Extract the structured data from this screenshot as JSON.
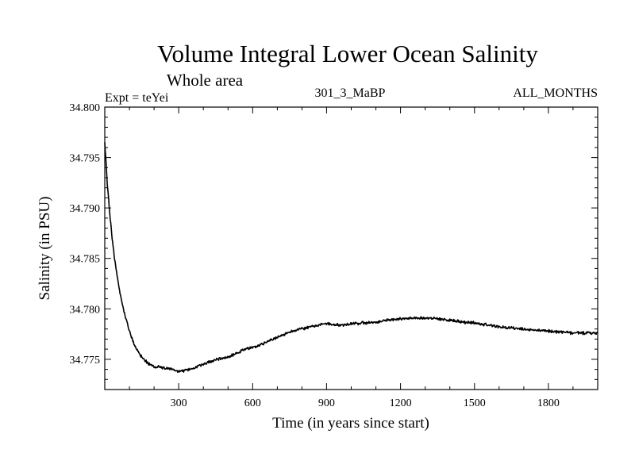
{
  "chart_data": {
    "type": "line",
    "title": "Volume Integral Lower Ocean Salinity",
    "subtitle": "Whole area",
    "experiment": "Expt = teYei",
    "run_label": "301_3_MaBP",
    "months_label": "ALL_MONTHS",
    "xlabel": "Time (in years since start)",
    "ylabel": "Salinity (in PSU)",
    "xlim": [
      0,
      2000
    ],
    "ylim": [
      34.772,
      34.8
    ],
    "xticks": [
      300,
      600,
      900,
      1200,
      1500,
      1800
    ],
    "xtick_labels": [
      "300",
      "600",
      "900",
      "1200",
      "1500",
      "1800"
    ],
    "yticks": [
      34.775,
      34.78,
      34.785,
      34.79,
      34.795,
      34.8
    ],
    "ytick_labels": [
      "34.775",
      "34.780",
      "34.785",
      "34.790",
      "34.795",
      "34.800"
    ],
    "grid": false,
    "series": [
      {
        "name": "Salinity",
        "x": [
          0,
          10,
          20,
          30,
          40,
          50,
          60,
          80,
          100,
          120,
          150,
          180,
          200,
          250,
          300,
          350,
          400,
          450,
          500,
          550,
          600,
          650,
          700,
          750,
          800,
          850,
          900,
          950,
          1000,
          1050,
          1100,
          1150,
          1200,
          1250,
          1300,
          1350,
          1400,
          1450,
          1500,
          1550,
          1600,
          1650,
          1700,
          1750,
          1800,
          1850,
          1900,
          1950,
          2000
        ],
        "y": [
          34.7965,
          34.7925,
          34.7895,
          34.787,
          34.785,
          34.7833,
          34.7818,
          34.7795,
          34.7778,
          34.7764,
          34.7752,
          34.7745,
          34.7743,
          34.7741,
          34.7738,
          34.774,
          34.7745,
          34.775,
          34.7752,
          34.7758,
          34.7762,
          34.7766,
          34.7772,
          34.7777,
          34.778,
          34.7783,
          34.7785,
          34.7784,
          34.7785,
          34.7786,
          34.7787,
          34.7789,
          34.779,
          34.7791,
          34.7791,
          34.779,
          34.7789,
          34.7787,
          34.7786,
          34.7784,
          34.7782,
          34.7781,
          34.778,
          34.7779,
          34.7778,
          34.7777,
          34.7776,
          34.7776,
          34.7776
        ]
      }
    ]
  }
}
